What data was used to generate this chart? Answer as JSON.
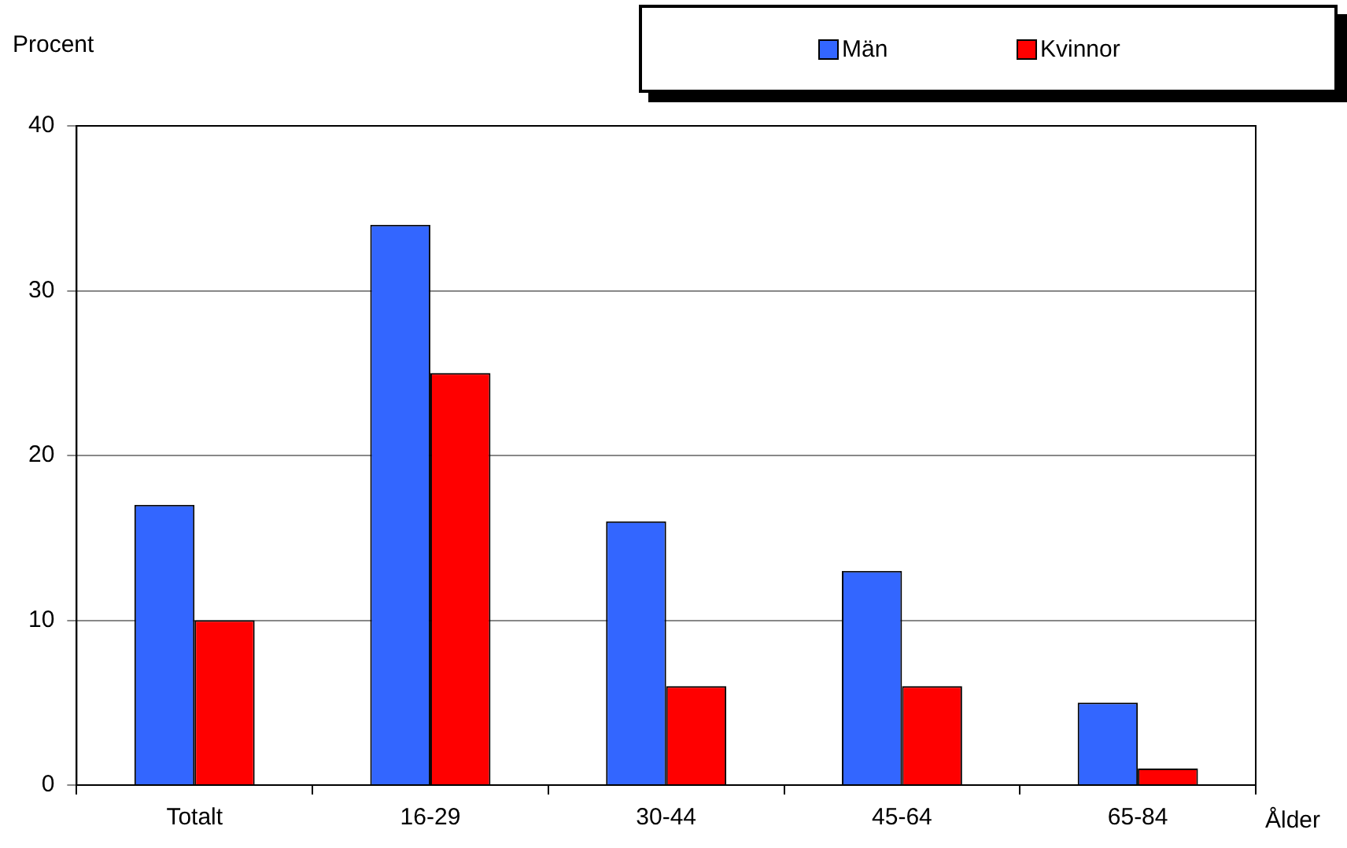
{
  "chart_data": {
    "type": "bar",
    "xlabel": "Ålder",
    "ylabel": "Procent",
    "categories": [
      "Totalt",
      "16-29",
      "30-44",
      "45-64",
      "65-84"
    ],
    "series": [
      {
        "name": "Män",
        "color": "#3366ff",
        "values": [
          17,
          34,
          16,
          13,
          5
        ]
      },
      {
        "name": "Kvinnor",
        "color": "#ff0000",
        "values": [
          10,
          25,
          6,
          6,
          1
        ]
      }
    ],
    "ylim": [
      0,
      40
    ],
    "yticks": [
      0,
      10,
      20,
      30,
      40
    ],
    "grid": "y",
    "legend": "top right"
  }
}
